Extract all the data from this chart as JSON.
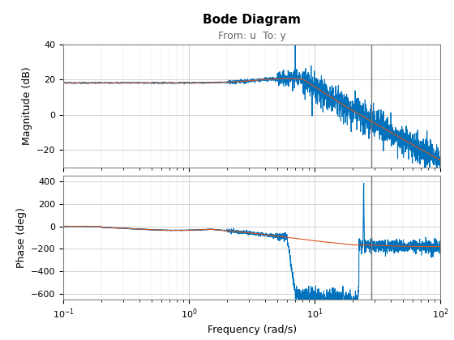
{
  "title": "Bode Diagram",
  "subtitle": "From: u  To: y",
  "xlabel": "Frequency (rad/s)",
  "ylabel_mag": "Magnitude (dB)",
  "ylabel_phase": "Phase (deg)",
  "freq_min": 0.1,
  "freq_max": 100,
  "mag_ylim": [
    -30,
    40
  ],
  "phase_ylim": [
    -650,
    450
  ],
  "vline_x": 28.0,
  "color_ge": "#0072BD",
  "color_gs": "#D95319",
  "line_width": 0.8,
  "mag_yticks": [
    -20,
    0,
    20,
    40
  ],
  "phase_yticks": [
    -600,
    -400,
    -200,
    0,
    200,
    400
  ],
  "background_color": "#ffffff"
}
